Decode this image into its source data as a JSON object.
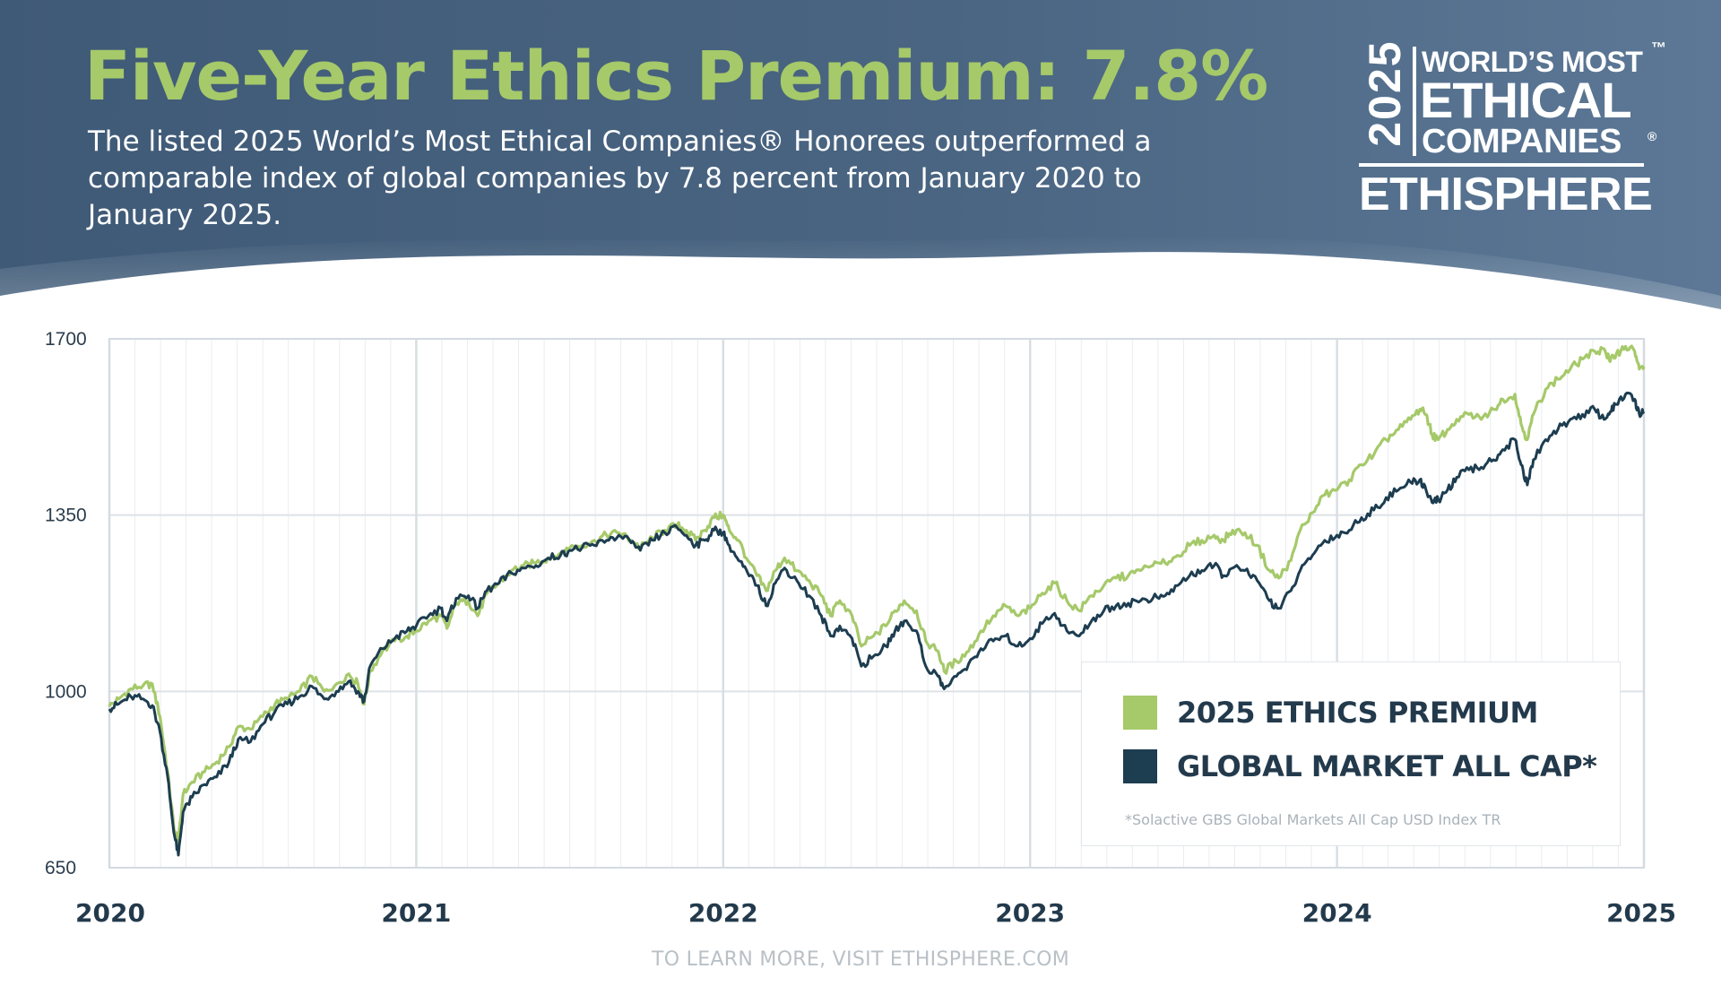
{
  "header": {
    "title": "Five-Year Ethics Premium: 7.8%",
    "subtitle": "The listed 2025 World’s Most Ethical Companies® Honorees outperformed a comparable index of global companies by 7.8 percent  from January 2020 to January 2025.",
    "bg_dark": "#435f7d",
    "title_color": "#a6c96a"
  },
  "logo": {
    "year": "2025",
    "line1": "WORLD’S MOST",
    "line2": "ETHICAL",
    "line3": "COMPANIES",
    "registered": "®",
    "trademark": "™",
    "brand": "ETHISPHERE"
  },
  "chart_data": {
    "type": "line",
    "x_tick_labels": [
      "2020",
      "2021",
      "2022",
      "2023",
      "2024",
      "2025"
    ],
    "y_tick_labels": [
      "1700",
      "1350",
      "1000",
      "650"
    ],
    "ylim": [
      650,
      1700
    ],
    "xlim": [
      2020,
      2025
    ],
    "grid": true,
    "legend_position": "bottom-right",
    "legend_note": "*Solactive GBS Global Markets All Cap USD Index TR",
    "series": [
      {
        "name": "2025 ETHICS PREMIUM",
        "color": "#a6c96a",
        "points": [
          [
            2020.0,
            970
          ],
          [
            2020.03,
            985
          ],
          [
            2020.07,
            1005
          ],
          [
            2020.11,
            1012
          ],
          [
            2020.14,
            1015
          ],
          [
            2020.165,
            950
          ],
          [
            2020.19,
            840
          ],
          [
            2020.21,
            730
          ],
          [
            2020.225,
            700
          ],
          [
            2020.24,
            795
          ],
          [
            2020.27,
            820
          ],
          [
            2020.31,
            840
          ],
          [
            2020.35,
            860
          ],
          [
            2020.39,
            890
          ],
          [
            2020.42,
            930
          ],
          [
            2020.46,
            925
          ],
          [
            2020.5,
            950
          ],
          [
            2020.54,
            975
          ],
          [
            2020.58,
            985
          ],
          [
            2020.62,
            1000
          ],
          [
            2020.66,
            1030
          ],
          [
            2020.7,
            1000
          ],
          [
            2020.74,
            1015
          ],
          [
            2020.78,
            1035
          ],
          [
            2020.81,
            1015
          ],
          [
            2020.83,
            975
          ],
          [
            2020.85,
            1040
          ],
          [
            2020.89,
            1080
          ],
          [
            2020.93,
            1100
          ],
          [
            2020.97,
            1110
          ],
          [
            2021.0,
            1120
          ],
          [
            2021.04,
            1140
          ],
          [
            2021.08,
            1150
          ],
          [
            2021.1,
            1125
          ],
          [
            2021.13,
            1175
          ],
          [
            2021.17,
            1180
          ],
          [
            2021.2,
            1150
          ],
          [
            2021.23,
            1195
          ],
          [
            2021.27,
            1215
          ],
          [
            2021.31,
            1240
          ],
          [
            2021.35,
            1250
          ],
          [
            2021.39,
            1255
          ],
          [
            2021.43,
            1265
          ],
          [
            2021.47,
            1275
          ],
          [
            2021.5,
            1285
          ],
          [
            2021.54,
            1290
          ],
          [
            2021.58,
            1300
          ],
          [
            2021.62,
            1310
          ],
          [
            2021.66,
            1315
          ],
          [
            2021.7,
            1300
          ],
          [
            2021.73,
            1285
          ],
          [
            2021.77,
            1305
          ],
          [
            2021.81,
            1320
          ],
          [
            2021.85,
            1330
          ],
          [
            2021.88,
            1320
          ],
          [
            2021.91,
            1300
          ],
          [
            2021.94,
            1320
          ],
          [
            2021.97,
            1345
          ],
          [
            2022.0,
            1350
          ],
          [
            2022.02,
            1320
          ],
          [
            2022.05,
            1300
          ],
          [
            2022.08,
            1260
          ],
          [
            2022.11,
            1230
          ],
          [
            2022.14,
            1200
          ],
          [
            2022.17,
            1240
          ],
          [
            2022.2,
            1265
          ],
          [
            2022.24,
            1240
          ],
          [
            2022.28,
            1220
          ],
          [
            2022.32,
            1190
          ],
          [
            2022.35,
            1150
          ],
          [
            2022.38,
            1180
          ],
          [
            2022.42,
            1150
          ],
          [
            2022.45,
            1090
          ],
          [
            2022.49,
            1110
          ],
          [
            2022.53,
            1130
          ],
          [
            2022.56,
            1160
          ],
          [
            2022.59,
            1180
          ],
          [
            2022.63,
            1160
          ],
          [
            2022.66,
            1100
          ],
          [
            2022.7,
            1080
          ],
          [
            2022.72,
            1040
          ],
          [
            2022.76,
            1060
          ],
          [
            2022.8,
            1080
          ],
          [
            2022.84,
            1120
          ],
          [
            2022.88,
            1150
          ],
          [
            2022.92,
            1170
          ],
          [
            2022.96,
            1150
          ],
          [
            2023.0,
            1165
          ],
          [
            2023.04,
            1195
          ],
          [
            2023.08,
            1215
          ],
          [
            2023.12,
            1180
          ],
          [
            2023.16,
            1160
          ],
          [
            2023.2,
            1190
          ],
          [
            2023.24,
            1210
          ],
          [
            2023.28,
            1225
          ],
          [
            2023.32,
            1230
          ],
          [
            2023.36,
            1240
          ],
          [
            2023.4,
            1250
          ],
          [
            2023.44,
            1255
          ],
          [
            2023.48,
            1270
          ],
          [
            2023.52,
            1290
          ],
          [
            2023.56,
            1300
          ],
          [
            2023.6,
            1310
          ],
          [
            2023.63,
            1300
          ],
          [
            2023.66,
            1320
          ],
          [
            2023.7,
            1315
          ],
          [
            2023.74,
            1290
          ],
          [
            2023.78,
            1240
          ],
          [
            2023.81,
            1225
          ],
          [
            2023.85,
            1260
          ],
          [
            2023.88,
            1320
          ],
          [
            2023.92,
            1355
          ],
          [
            2023.96,
            1390
          ],
          [
            2024.0,
            1400
          ],
          [
            2024.04,
            1420
          ],
          [
            2024.08,
            1450
          ],
          [
            2024.12,
            1470
          ],
          [
            2024.16,
            1500
          ],
          [
            2024.2,
            1520
          ],
          [
            2024.24,
            1540
          ],
          [
            2024.27,
            1560
          ],
          [
            2024.29,
            1550
          ],
          [
            2024.31,
            1510
          ],
          [
            2024.33,
            1500
          ],
          [
            2024.36,
            1520
          ],
          [
            2024.39,
            1540
          ],
          [
            2024.43,
            1550
          ],
          [
            2024.47,
            1540
          ],
          [
            2024.51,
            1560
          ],
          [
            2024.54,
            1580
          ],
          [
            2024.58,
            1590
          ],
          [
            2024.6,
            1530
          ],
          [
            2024.62,
            1500
          ],
          [
            2024.64,
            1550
          ],
          [
            2024.68,
            1600
          ],
          [
            2024.72,
            1620
          ],
          [
            2024.76,
            1640
          ],
          [
            2024.8,
            1660
          ],
          [
            2024.84,
            1675
          ],
          [
            2024.87,
            1680
          ],
          [
            2024.89,
            1655
          ],
          [
            2024.91,
            1670
          ],
          [
            2024.94,
            1685
          ],
          [
            2024.97,
            1675
          ],
          [
            2024.985,
            1640
          ],
          [
            2025.0,
            1645
          ]
        ]
      },
      {
        "name": "GLOBAL MARKET ALL CAP*",
        "color": "#1d3d50",
        "points": [
          [
            2020.0,
            965
          ],
          [
            2020.03,
            975
          ],
          [
            2020.07,
            990
          ],
          [
            2020.11,
            985
          ],
          [
            2020.14,
            972
          ],
          [
            2020.165,
            920
          ],
          [
            2020.19,
            830
          ],
          [
            2020.21,
            720
          ],
          [
            2020.225,
            675
          ],
          [
            2020.24,
            760
          ],
          [
            2020.27,
            790
          ],
          [
            2020.31,
            815
          ],
          [
            2020.35,
            830
          ],
          [
            2020.39,
            860
          ],
          [
            2020.42,
            905
          ],
          [
            2020.46,
            900
          ],
          [
            2020.5,
            935
          ],
          [
            2020.54,
            960
          ],
          [
            2020.58,
            975
          ],
          [
            2020.62,
            990
          ],
          [
            2020.66,
            1010
          ],
          [
            2020.7,
            985
          ],
          [
            2020.74,
            1000
          ],
          [
            2020.78,
            1020
          ],
          [
            2020.81,
            1000
          ],
          [
            2020.83,
            980
          ],
          [
            2020.85,
            1050
          ],
          [
            2020.89,
            1085
          ],
          [
            2020.93,
            1105
          ],
          [
            2020.97,
            1120
          ],
          [
            2021.0,
            1130
          ],
          [
            2021.04,
            1150
          ],
          [
            2021.08,
            1165
          ],
          [
            2021.1,
            1140
          ],
          [
            2021.13,
            1185
          ],
          [
            2021.17,
            1190
          ],
          [
            2021.2,
            1165
          ],
          [
            2021.23,
            1200
          ],
          [
            2021.27,
            1215
          ],
          [
            2021.31,
            1235
          ],
          [
            2021.35,
            1245
          ],
          [
            2021.39,
            1250
          ],
          [
            2021.43,
            1265
          ],
          [
            2021.47,
            1270
          ],
          [
            2021.5,
            1280
          ],
          [
            2021.54,
            1285
          ],
          [
            2021.58,
            1290
          ],
          [
            2021.62,
            1300
          ],
          [
            2021.66,
            1310
          ],
          [
            2021.7,
            1295
          ],
          [
            2021.73,
            1280
          ],
          [
            2021.77,
            1300
          ],
          [
            2021.81,
            1315
          ],
          [
            2021.85,
            1325
          ],
          [
            2021.88,
            1310
          ],
          [
            2021.91,
            1290
          ],
          [
            2021.94,
            1300
          ],
          [
            2021.97,
            1320
          ],
          [
            2022.0,
            1315
          ],
          [
            2022.02,
            1290
          ],
          [
            2022.05,
            1260
          ],
          [
            2022.08,
            1235
          ],
          [
            2022.11,
            1210
          ],
          [
            2022.14,
            1170
          ],
          [
            2022.17,
            1215
          ],
          [
            2022.2,
            1245
          ],
          [
            2022.24,
            1220
          ],
          [
            2022.28,
            1190
          ],
          [
            2022.32,
            1150
          ],
          [
            2022.35,
            1110
          ],
          [
            2022.38,
            1130
          ],
          [
            2022.42,
            1105
          ],
          [
            2022.45,
            1050
          ],
          [
            2022.49,
            1070
          ],
          [
            2022.53,
            1090
          ],
          [
            2022.56,
            1120
          ],
          [
            2022.59,
            1140
          ],
          [
            2022.63,
            1120
          ],
          [
            2022.66,
            1050
          ],
          [
            2022.7,
            1030
          ],
          [
            2022.72,
            1005
          ],
          [
            2022.76,
            1030
          ],
          [
            2022.8,
            1055
          ],
          [
            2022.84,
            1085
          ],
          [
            2022.88,
            1100
          ],
          [
            2022.92,
            1110
          ],
          [
            2022.96,
            1090
          ],
          [
            2023.0,
            1105
          ],
          [
            2023.04,
            1135
          ],
          [
            2023.08,
            1155
          ],
          [
            2023.12,
            1120
          ],
          [
            2023.16,
            1110
          ],
          [
            2023.2,
            1140
          ],
          [
            2023.24,
            1160
          ],
          [
            2023.28,
            1170
          ],
          [
            2023.32,
            1175
          ],
          [
            2023.36,
            1180
          ],
          [
            2023.4,
            1185
          ],
          [
            2023.44,
            1190
          ],
          [
            2023.48,
            1210
          ],
          [
            2023.52,
            1230
          ],
          [
            2023.56,
            1240
          ],
          [
            2023.6,
            1250
          ],
          [
            2023.63,
            1230
          ],
          [
            2023.66,
            1245
          ],
          [
            2023.7,
            1240
          ],
          [
            2023.74,
            1220
          ],
          [
            2023.78,
            1180
          ],
          [
            2023.81,
            1165
          ],
          [
            2023.85,
            1200
          ],
          [
            2023.88,
            1240
          ],
          [
            2023.92,
            1270
          ],
          [
            2023.96,
            1300
          ],
          [
            2024.0,
            1310
          ],
          [
            2024.04,
            1320
          ],
          [
            2024.08,
            1345
          ],
          [
            2024.12,
            1360
          ],
          [
            2024.16,
            1385
          ],
          [
            2024.2,
            1400
          ],
          [
            2024.24,
            1415
          ],
          [
            2024.27,
            1420
          ],
          [
            2024.29,
            1400
          ],
          [
            2024.31,
            1375
          ],
          [
            2024.33,
            1380
          ],
          [
            2024.36,
            1400
          ],
          [
            2024.39,
            1425
          ],
          [
            2024.43,
            1440
          ],
          [
            2024.47,
            1445
          ],
          [
            2024.51,
            1460
          ],
          [
            2024.54,
            1480
          ],
          [
            2024.58,
            1500
          ],
          [
            2024.6,
            1450
          ],
          [
            2024.62,
            1410
          ],
          [
            2024.64,
            1460
          ],
          [
            2024.68,
            1500
          ],
          [
            2024.72,
            1520
          ],
          [
            2024.76,
            1540
          ],
          [
            2024.8,
            1550
          ],
          [
            2024.84,
            1560
          ],
          [
            2024.87,
            1540
          ],
          [
            2024.89,
            1555
          ],
          [
            2024.91,
            1570
          ],
          [
            2024.94,
            1590
          ],
          [
            2024.97,
            1580
          ],
          [
            2024.985,
            1550
          ],
          [
            2025.0,
            1555
          ]
        ]
      }
    ]
  },
  "footer": {
    "text": "TO LEARN MORE, VISIT ETHISPHERE.COM"
  }
}
